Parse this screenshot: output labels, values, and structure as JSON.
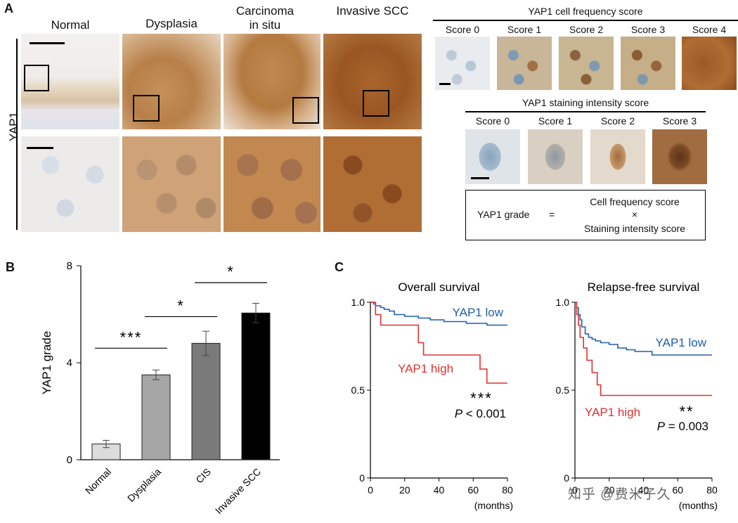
{
  "panel_a": {
    "letter": "A",
    "side_label": "YAP1",
    "columns": [
      "Normal",
      "Dysplasia",
      "Carcinoma in situ",
      "Invasive SCC"
    ],
    "freq_title": "YAP1 cell frequency score",
    "freq_scores": [
      "Score 0",
      "Score 1",
      "Score 2",
      "Score 3",
      "Score 4"
    ],
    "intensity_title": "YAP1 staining intensity score",
    "intensity_scores": [
      "Score 0",
      "Score 1",
      "Score 2",
      "Score 3"
    ],
    "formula": {
      "lhs": "YAP1 grade",
      "eq": "=",
      "numerator": "Cell frequency score",
      "times": "×",
      "denominator": "Staining intensity score"
    },
    "colors": {
      "normal_bg": "#e9e6e4",
      "brown_light": "#c89a6a",
      "brown_mid": "#b06d34",
      "brown_dark": "#8a4a1c",
      "blue_nuclei": "#9fb4c8"
    }
  },
  "chart_data": [
    {
      "panel": "B",
      "type": "bar",
      "ylabel": "YAP1 grade",
      "categories": [
        "Normal",
        "Dysplasia",
        "CIS",
        "Invasive SCC"
      ],
      "values": [
        0.65,
        3.5,
        4.8,
        6.05
      ],
      "errors": [
        0.15,
        0.2,
        0.5,
        0.4
      ],
      "bar_colors": [
        "#dcdcdc",
        "#a6a6a6",
        "#7a7a7a",
        "#000000"
      ],
      "ylim": [
        0,
        8
      ],
      "yticks": [
        "0",
        "4",
        "8"
      ],
      "significance": [
        {
          "from": 0,
          "to": 1,
          "label": "***",
          "y": 4.6
        },
        {
          "from": 1,
          "to": 2,
          "label": "*",
          "y": 5.9
        },
        {
          "from": 2,
          "to": 3,
          "label": "*",
          "y": 7.3
        }
      ]
    },
    {
      "panel": "C",
      "type": "line",
      "title": "Overall survival",
      "xlabel": "(months)",
      "xlim": [
        0,
        80
      ],
      "ylim": [
        0,
        1.0
      ],
      "xticks": [
        "0",
        "20",
        "40",
        "60",
        "80"
      ],
      "yticks": [
        "0",
        "0.5",
        "1.0"
      ],
      "series": [
        {
          "name": "YAP1 low",
          "color": "#1f5faa",
          "x": [
            0,
            2,
            3,
            6,
            8,
            11,
            14,
            20,
            28,
            35,
            43,
            56,
            68,
            80
          ],
          "y": [
            1.0,
            0.99,
            0.98,
            0.97,
            0.96,
            0.95,
            0.93,
            0.92,
            0.91,
            0.9,
            0.89,
            0.88,
            0.87,
            0.87
          ]
        },
        {
          "name": "YAP1 high",
          "color": "#e03030",
          "x": [
            0,
            3,
            6,
            25,
            28,
            31,
            64,
            68,
            80
          ],
          "y": [
            1.0,
            0.93,
            0.87,
            0.87,
            0.77,
            0.7,
            0.62,
            0.54,
            0.54
          ]
        }
      ],
      "annotation": {
        "stars": "***",
        "p_label": "P",
        "p_value": "< 0.001"
      }
    },
    {
      "panel": "C",
      "type": "line",
      "title": "Relapse-free survival",
      "xlabel": "(months)",
      "xlim": [
        0,
        80
      ],
      "ylim": [
        0,
        1.0
      ],
      "xticks": [
        "0",
        "20",
        "40",
        "60",
        "80"
      ],
      "yticks": [
        "0",
        "0.5",
        "1.0"
      ],
      "series": [
        {
          "name": "YAP1 low",
          "color": "#1f5faa",
          "x": [
            0,
            1,
            2,
            3,
            4,
            6,
            8,
            10,
            12,
            15,
            20,
            25,
            30,
            35,
            45,
            60,
            80
          ],
          "y": [
            1.0,
            0.97,
            0.93,
            0.9,
            0.86,
            0.82,
            0.8,
            0.79,
            0.78,
            0.77,
            0.76,
            0.74,
            0.73,
            0.72,
            0.7,
            0.7,
            0.7
          ]
        },
        {
          "name": "YAP1 high",
          "color": "#e03030",
          "x": [
            0,
            1,
            2,
            3,
            5,
            7,
            10,
            13,
            15,
            17,
            27,
            80
          ],
          "y": [
            1.0,
            0.93,
            0.87,
            0.8,
            0.74,
            0.67,
            0.6,
            0.53,
            0.47,
            0.47,
            0.47,
            0.47
          ]
        }
      ],
      "annotation": {
        "stars": "**",
        "p_label": "P",
        "p_value": "= 0.003"
      }
    }
  ],
  "panel_letters": {
    "b": "B",
    "c": "C"
  },
  "watermark": "知乎 @费米子久"
}
